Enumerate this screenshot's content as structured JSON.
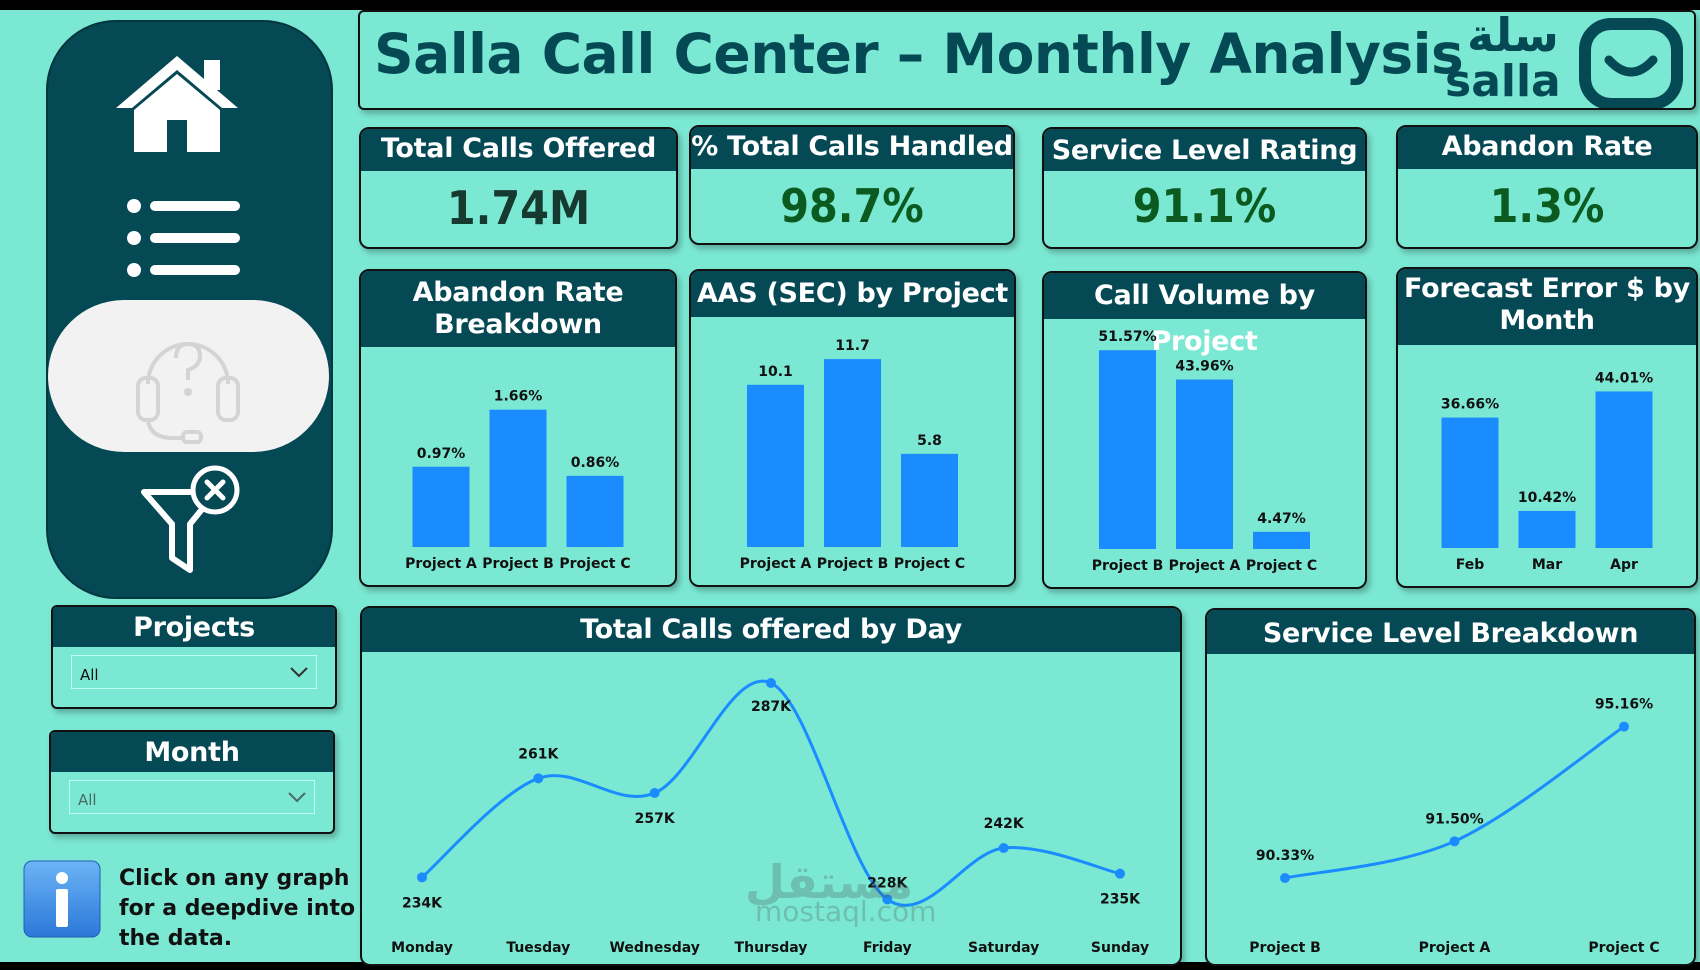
{
  "header": {
    "title": "Salla Call Center – Monthly Analysis",
    "logo_ar": "سلة",
    "logo_en": "salla"
  },
  "nav": {
    "items": [
      "home-icon",
      "list-icon",
      "support-headset-icon",
      "clear-filter-icon"
    ],
    "active": "support-headset-icon"
  },
  "kpis": [
    {
      "label": "Total Calls Offered",
      "value": "1.74M",
      "color": "#163a30"
    },
    {
      "label": "% Total Calls Handled",
      "value": "98.7%",
      "color": "#0b5a1f"
    },
    {
      "label": "Service Level Rating",
      "value": "91.1%",
      "color": "#0b5a1f"
    },
    {
      "label": "Abandon Rate",
      "value": "1.3%",
      "color": "#0b5a1f"
    }
  ],
  "charts": {
    "abandon": {
      "title_l1": "Abandon Rate",
      "title_l2": "Breakdown"
    },
    "aas": {
      "title": "AAS (SEC) by Project"
    },
    "volume": {
      "title": "Call Volume by Project"
    },
    "forecast": {
      "title_l1": "Forecast Error $ by",
      "title_l2": "Month"
    },
    "daily": {
      "title": "Total Calls offered by Day"
    },
    "service": {
      "title": "Service Level Breakdown"
    }
  },
  "chart_data": [
    {
      "type": "bar",
      "title": "Abandon Rate Breakdown",
      "categories": [
        "Project A",
        "Project B",
        "Project C"
      ],
      "values": [
        0.97,
        1.66,
        0.86
      ],
      "labels": [
        "0.97%",
        "1.66%",
        "0.86%"
      ],
      "ylim": [
        0,
        2.2
      ],
      "color": "#1a8cff"
    },
    {
      "type": "bar",
      "title": "AAS (SEC) by Project",
      "categories": [
        "Project A",
        "Project B",
        "Project C"
      ],
      "values": [
        10.1,
        11.7,
        5.8
      ],
      "labels": [
        "10.1",
        "11.7",
        "5.8"
      ],
      "ylim": [
        0,
        13.2
      ],
      "color": "#1a8cff"
    },
    {
      "type": "bar",
      "title": "Call Volume by Project",
      "categories": [
        "Project B",
        "Project A",
        "Project C"
      ],
      "values": [
        51.57,
        43.96,
        4.47
      ],
      "labels": [
        "51.57%",
        "43.96%",
        "4.47%"
      ],
      "ylim": [
        0,
        55
      ],
      "color": "#1a8cff"
    },
    {
      "type": "bar",
      "title": "Forecast Error $ by Month",
      "categories": [
        "Feb",
        "Mar",
        "Apr"
      ],
      "values": [
        36.66,
        10.42,
        44.01
      ],
      "labels": [
        "36.66%",
        "10.42%",
        "44.01%"
      ],
      "ylim": [
        0,
        52
      ],
      "color": "#1a8cff"
    },
    {
      "type": "line",
      "title": "Total Calls offered by Day",
      "categories": [
        "Monday",
        "Tuesday",
        "Wednesday",
        "Thursday",
        "Friday",
        "Saturday",
        "Sunday"
      ],
      "values": [
        234,
        261,
        257,
        287,
        228,
        242,
        235
      ],
      "labels": [
        "234K",
        "261K",
        "257K",
        "287K",
        "228K",
        "242K",
        "235K"
      ],
      "ylim": [
        224,
        290
      ],
      "color": "#1a8cff"
    },
    {
      "type": "line",
      "title": "Service Level Breakdown",
      "categories": [
        "Project B",
        "Project A",
        "Project C"
      ],
      "values": [
        90.33,
        91.5,
        95.16
      ],
      "labels": [
        "90.33%",
        "91.50%",
        "95.16%"
      ],
      "ylim": [
        89.5,
        96.2
      ],
      "color": "#1a8cff"
    }
  ],
  "slicers": [
    {
      "label": "Projects",
      "value": "All"
    },
    {
      "label": "Month",
      "value": "All"
    }
  ],
  "info": {
    "text": "Click on any graph for a deepdive into the data."
  },
  "watermark": {
    "ar": "مستقل",
    "en": "mostaql.com"
  }
}
